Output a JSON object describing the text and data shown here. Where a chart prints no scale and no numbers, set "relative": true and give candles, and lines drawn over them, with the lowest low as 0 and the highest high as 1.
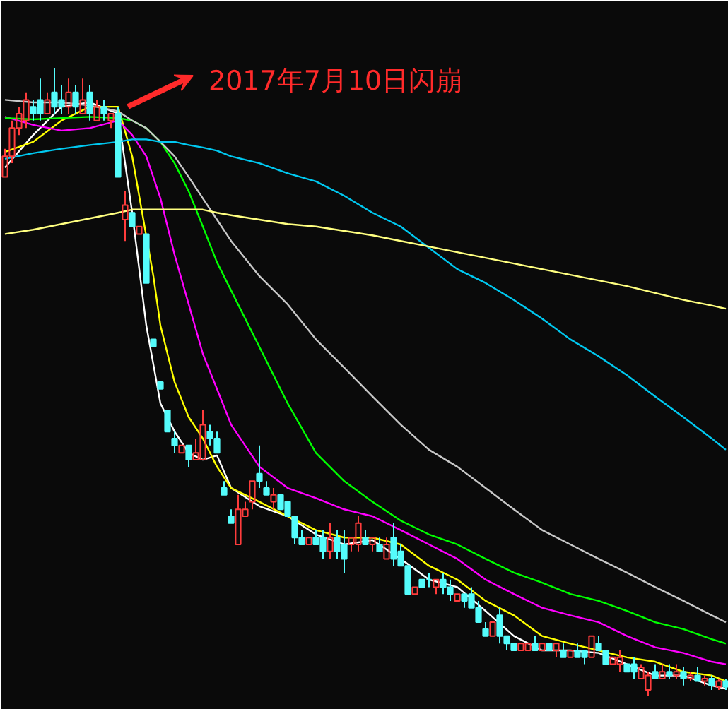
{
  "chart_data": {
    "type": "candlestick",
    "relative": true,
    "annotations": [
      "2017年7月10日闪崩"
    ],
    "categories": [
      null,
      null,
      null,
      null,
      null,
      null,
      null,
      null,
      null,
      null,
      null,
      null,
      null,
      null,
      null,
      null,
      null,
      null,
      null,
      null,
      null,
      null,
      null,
      null,
      null,
      null,
      null,
      null,
      null,
      null,
      null,
      null,
      null,
      null,
      null,
      null,
      null,
      null,
      null,
      null,
      null,
      null,
      null,
      null,
      null,
      null,
      null,
      null,
      null,
      null,
      null,
      null,
      null,
      null,
      null,
      null,
      null,
      null,
      null,
      null,
      null,
      null,
      null,
      null,
      null,
      null,
      null,
      null,
      null,
      null,
      null,
      null,
      null,
      null,
      null,
      null,
      null,
      null,
      null,
      null,
      null,
      null,
      null,
      null,
      null,
      null,
      null,
      null,
      null,
      null,
      null,
      null,
      null,
      null,
      null,
      null,
      null,
      null,
      null,
      null,
      null,
      null,
      null
    ],
    "ohlc": [
      [
        0.827,
        0.872,
        0.827,
        0.86
      ],
      [
        0.86,
        0.917,
        0.849,
        0.905
      ],
      [
        0.905,
        0.939,
        0.894,
        0.928
      ],
      [
        0.917,
        0.962,
        0.905,
        0.95
      ],
      [
        0.939,
        0.95,
        0.917,
        0.928
      ],
      [
        0.95,
        0.984,
        0.917,
        0.928
      ],
      [
        0.928,
        0.962,
        0.928,
        0.95
      ],
      [
        0.962,
        1.0,
        0.928,
        0.939
      ],
      [
        0.95,
        0.973,
        0.928,
        0.939
      ],
      [
        0.939,
        0.984,
        0.928,
        0.962
      ],
      [
        0.962,
        0.973,
        0.928,
        0.939
      ],
      [
        0.928,
        0.984,
        0.928,
        0.95
      ],
      [
        0.962,
        0.973,
        0.917,
        0.928
      ],
      [
        0.917,
        0.95,
        0.917,
        0.939
      ],
      [
        0.939,
        0.95,
        0.917,
        0.928
      ],
      [
        0.917,
        0.928,
        0.905,
        0.928
      ],
      [
        0.928,
        0.939,
        0.827,
        0.827
      ],
      [
        0.759,
        0.804,
        0.725,
        0.782
      ],
      [
        0.77,
        0.77,
        0.748,
        0.748
      ],
      [
        0.736,
        0.748,
        0.736,
        0.748
      ],
      [
        0.736,
        0.736,
        0.658,
        0.658
      ],
      [
        0.568,
        0.568,
        0.557,
        0.557
      ],
      [
        0.5,
        0.5,
        0.489,
        0.489
      ],
      [
        0.455,
        0.455,
        0.421,
        0.421
      ],
      [
        0.41,
        0.421,
        0.387,
        0.399
      ],
      [
        0.387,
        0.399,
        0.387,
        0.399
      ],
      [
        0.399,
        0.399,
        0.365,
        0.376
      ],
      [
        0.376,
        0.41,
        0.376,
        0.387
      ],
      [
        0.376,
        0.455,
        0.376,
        0.432
      ],
      [
        0.421,
        0.432,
        0.399,
        0.41
      ],
      [
        0.41,
        0.421,
        0.387,
        0.387
      ],
      [
        0.331,
        0.342,
        0.32,
        0.32
      ],
      [
        0.286,
        0.297,
        0.275,
        0.275
      ],
      [
        0.241,
        0.32,
        0.241,
        0.297
      ],
      [
        0.286,
        0.309,
        0.286,
        0.297
      ],
      [
        0.309,
        0.342,
        0.297,
        0.342
      ],
      [
        0.354,
        0.399,
        0.331,
        0.342
      ],
      [
        0.331,
        0.342,
        0.32,
        0.32
      ],
      [
        0.309,
        0.331,
        0.297,
        0.32
      ],
      [
        0.32,
        0.32,
        0.297,
        0.297
      ],
      [
        0.309,
        0.309,
        0.286,
        0.286
      ],
      [
        0.286,
        0.286,
        0.241,
        0.252
      ],
      [
        0.252,
        0.264,
        0.241,
        0.241
      ],
      [
        0.241,
        0.252,
        0.241,
        0.252
      ],
      [
        0.252,
        0.264,
        0.241,
        0.241
      ],
      [
        0.252,
        0.264,
        0.218,
        0.23
      ],
      [
        0.23,
        0.275,
        0.218,
        0.252
      ],
      [
        0.252,
        0.264,
        0.218,
        0.23
      ],
      [
        0.241,
        0.264,
        0.196,
        0.218
      ],
      [
        0.241,
        0.252,
        0.23,
        0.252
      ],
      [
        0.241,
        0.286,
        0.23,
        0.275
      ],
      [
        0.252,
        0.264,
        0.241,
        0.241
      ],
      [
        0.241,
        0.252,
        0.23,
        0.252
      ],
      [
        0.241,
        0.252,
        0.23,
        0.23
      ],
      [
        0.218,
        0.252,
        0.218,
        0.241
      ],
      [
        0.252,
        0.275,
        0.207,
        0.218
      ],
      [
        0.23,
        0.241,
        0.207,
        0.207
      ],
      [
        0.207,
        0.207,
        0.162,
        0.162
      ],
      [
        0.162,
        0.173,
        0.162,
        0.173
      ],
      [
        0.185,
        0.185,
        0.173,
        0.173
      ],
      [
        0.185,
        0.196,
        0.173,
        0.185
      ],
      [
        0.173,
        0.185,
        0.162,
        0.185
      ],
      [
        0.185,
        0.196,
        0.162,
        0.173
      ],
      [
        0.173,
        0.185,
        0.151,
        0.162
      ],
      [
        0.151,
        0.162,
        0.151,
        0.162
      ],
      [
        0.162,
        0.162,
        0.14,
        0.151
      ],
      [
        0.162,
        0.173,
        0.14,
        0.14
      ],
      [
        0.14,
        0.151,
        0.117,
        0.117
      ],
      [
        0.106,
        0.117,
        0.095,
        0.095
      ],
      [
        0.095,
        0.117,
        0.095,
        0.117
      ],
      [
        0.128,
        0.14,
        0.083,
        0.095
      ],
      [
        0.095,
        0.095,
        0.072,
        0.083
      ],
      [
        0.083,
        0.083,
        0.072,
        0.072
      ],
      [
        0.072,
        0.083,
        0.072,
        0.083
      ],
      [
        0.072,
        0.083,
        0.072,
        0.083
      ],
      [
        0.083,
        0.095,
        0.072,
        0.072
      ],
      [
        0.072,
        0.083,
        0.072,
        0.083
      ],
      [
        0.083,
        0.083,
        0.072,
        0.072
      ],
      [
        0.072,
        0.083,
        0.061,
        0.083
      ],
      [
        0.072,
        0.083,
        0.061,
        0.061
      ],
      [
        0.061,
        0.072,
        0.061,
        0.072
      ],
      [
        0.072,
        0.083,
        0.061,
        0.061
      ],
      [
        0.072,
        0.072,
        0.05,
        0.061
      ],
      [
        0.061,
        0.095,
        0.061,
        0.095
      ],
      [
        0.083,
        0.095,
        0.072,
        0.072
      ],
      [
        0.072,
        0.072,
        0.05,
        0.05
      ],
      [
        0.05,
        0.061,
        0.05,
        0.061
      ],
      [
        0.05,
        0.072,
        0.038,
        0.061
      ],
      [
        0.05,
        0.05,
        0.038,
        0.038
      ],
      [
        0.05,
        0.061,
        0.027,
        0.038
      ],
      [
        0.027,
        0.05,
        0.027,
        0.045
      ],
      [
        0.009,
        0.038,
        0.0,
        0.032
      ],
      [
        0.038,
        0.05,
        0.027,
        0.027
      ],
      [
        0.027,
        0.05,
        0.027,
        0.038
      ],
      [
        0.038,
        0.05,
        0.027,
        0.032
      ],
      [
        0.032,
        0.05,
        0.027,
        0.038
      ],
      [
        0.038,
        0.045,
        0.016,
        0.027
      ],
      [
        0.027,
        0.038,
        0.023,
        0.032
      ],
      [
        0.032,
        0.045,
        0.023,
        0.023
      ],
      [
        0.023,
        0.032,
        0.016,
        0.027
      ],
      [
        0.027,
        0.032,
        0.009,
        0.016
      ],
      [
        0.014,
        0.027,
        0.009,
        0.023
      ],
      [
        0.023,
        0.027,
        0.009,
        0.014
      ]
    ],
    "colors": [
      "#ff3c3c",
      "#ff3c3c",
      "#ff3c3c",
      "#ff3c3c",
      "#54fcfc",
      "#54fcfc",
      "#ff3c3c",
      "#54fcfc",
      "#54fcfc",
      "#ff3c3c",
      "#54fcfc",
      "#ff3c3c",
      "#54fcfc",
      "#ff3c3c",
      "#54fcfc",
      "#ff3c3c",
      "#54fcfc",
      "#ff3c3c",
      "#54fcfc",
      "#ff3c3c",
      "#54fcfc",
      "#54fcfc",
      "#54fcfc",
      "#54fcfc",
      "#54fcfc",
      "#ff3c3c",
      "#54fcfc",
      "#ff3c3c",
      "#ff3c3c",
      "#54fcfc",
      "#54fcfc",
      "#54fcfc",
      "#54fcfc",
      "#ff3c3c",
      "#ff3c3c",
      "#ff3c3c",
      "#54fcfc",
      "#54fcfc",
      "#ff3c3c",
      "#54fcfc",
      "#54fcfc",
      "#54fcfc",
      "#54fcfc",
      "#ff3c3c",
      "#54fcfc",
      "#54fcfc",
      "#ff3c3c",
      "#54fcfc",
      "#54fcfc",
      "#ff3c3c",
      "#ff3c3c",
      "#54fcfc",
      "#ff3c3c",
      "#54fcfc",
      "#ff3c3c",
      "#54fcfc",
      "#54fcfc",
      "#54fcfc",
      "#ff3c3c",
      "#54fcfc",
      "#54fcfc",
      "#ff3c3c",
      "#54fcfc",
      "#54fcfc",
      "#ff3c3c",
      "#54fcfc",
      "#54fcfc",
      "#54fcfc",
      "#54fcfc",
      "#ff3c3c",
      "#54fcfc",
      "#54fcfc",
      "#54fcfc",
      "#ff3c3c",
      "#ff3c3c",
      "#54fcfc",
      "#ff3c3c",
      "#54fcfc",
      "#ff3c3c",
      "#54fcfc",
      "#ff3c3c",
      "#54fcfc",
      "#54fcfc",
      "#ff3c3c",
      "#54fcfc",
      "#54fcfc",
      "#ff3c3c",
      "#ff3c3c",
      "#54fcfc",
      "#54fcfc",
      "#ff3c3c",
      "#ff3c3c",
      "#54fcfc",
      "#ff3c3c",
      "#54fcfc",
      "#ff3c3c",
      "#54fcfc",
      "#ff3c3c",
      "#54fcfc",
      "#ff3c3c",
      "#54fcfc",
      "#ff3c3c",
      "#54fcfc"
    ],
    "series": [
      {
        "type": "line",
        "color": "#ffffff",
        "values": [
          0.842,
          null,
          null,
          null,
          0.894,
          null,
          null,
          null,
          0.939,
          null,
          null,
          null,
          0.946,
          null,
          null,
          null,
          0.928,
          null,
          0.77,
          null,
          0.59,
          null,
          0.466,
          null,
          0.421,
          null,
          0.387,
          null,
          0.376,
          null,
          0.383,
          null,
          0.331,
          null,
          null,
          null,
          0.302,
          null,
          null,
          null,
          0.286,
          null,
          null,
          null,
          0.257,
          null,
          null,
          null,
          0.241,
          null,
          null,
          null,
          0.248,
          null,
          null,
          null,
          0.218,
          null,
          null,
          null,
          0.185,
          null,
          null,
          null,
          0.173,
          null,
          null,
          null,
          0.135,
          null,
          null,
          null,
          0.095,
          null,
          null,
          null,
          0.072,
          null,
          null,
          null,
          0.072,
          null,
          null,
          null,
          0.068,
          null,
          null,
          null,
          0.05,
          null,
          null,
          null,
          0.032,
          null,
          null,
          null,
          0.032,
          null,
          null,
          null,
          0.016,
          null,
          0.011
        ]
      },
      {
        "type": "line",
        "color": "#ffff00",
        "values": [
          0.867,
          null,
          null,
          null,
          0.883,
          null,
          null,
          null,
          0.917,
          null,
          null,
          null,
          0.939,
          null,
          null,
          null,
          0.939,
          null,
          0.86,
          null,
          null,
          0.669,
          0.59,
          null,
          0.5,
          null,
          0.444,
          null,
          0.41,
          null,
          0.365,
          null,
          0.331,
          null,
          null,
          null,
          0.309,
          null,
          null,
          null,
          0.286,
          null,
          null,
          null,
          0.264,
          null,
          null,
          null,
          0.252,
          null,
          null,
          null,
          0.252,
          null,
          null,
          null,
          0.241,
          null,
          null,
          null,
          0.207,
          null,
          null,
          null,
          0.185,
          null,
          null,
          null,
          0.151,
          null,
          null,
          null,
          0.128,
          null,
          null,
          null,
          0.095,
          null,
          null,
          null,
          0.083,
          null,
          null,
          null,
          0.072,
          null,
          null,
          null,
          0.061,
          null,
          null,
          null,
          0.054,
          null,
          null,
          null,
          0.038,
          null,
          null,
          null,
          0.032,
          null,
          0.023
        ]
      },
      {
        "type": "line",
        "color": "#ff00ff",
        "values": [
          0.923,
          null,
          null,
          null,
          0.91,
          null,
          null,
          null,
          0.901,
          null,
          null,
          null,
          0.905,
          null,
          null,
          null,
          0.917,
          null,
          0.894,
          null,
          0.86,
          null,
          0.793,
          null,
          0.703,
          null,
          0.624,
          null,
          0.545,
          null,
          0.489,
          null,
          0.432,
          null,
          null,
          null,
          0.365,
          null,
          null,
          null,
          0.331,
          null,
          null,
          null,
          0.315,
          null,
          null,
          null,
          0.297,
          null,
          null,
          null,
          0.286,
          null,
          null,
          null,
          0.264,
          null,
          null,
          null,
          0.241,
          null,
          null,
          null,
          0.218,
          null,
          null,
          null,
          0.185,
          null,
          null,
          null,
          0.162,
          null,
          null,
          null,
          0.14,
          null,
          null,
          null,
          0.128,
          null,
          null,
          null,
          0.117,
          null,
          null,
          null,
          0.095,
          null,
          null,
          null,
          0.077,
          null,
          null,
          null,
          0.068,
          null,
          null,
          null,
          0.054,
          null,
          0.05
        ]
      },
      {
        "type": "line",
        "color": "#00ff00",
        "values": [
          0.921,
          null,
          null,
          null,
          0.919,
          null,
          null,
          null,
          0.921,
          null,
          null,
          null,
          0.923,
          null,
          null,
          null,
          0.921,
          null,
          0.917,
          null,
          0.905,
          null,
          0.883,
          null,
          0.849,
          null,
          0.804,
          null,
          0.748,
          null,
          0.691,
          null,
          0.646,
          null,
          null,
          null,
          0.556,
          null,
          null,
          null,
          0.466,
          null,
          null,
          null,
          0.387,
          null,
          null,
          null,
          0.342,
          null,
          null,
          null,
          0.309,
          null,
          null,
          null,
          0.279,
          null,
          null,
          null,
          0.257,
          null,
          null,
          null,
          0.241,
          null,
          null,
          null,
          0.218,
          null,
          null,
          null,
          0.196,
          null,
          null,
          null,
          0.18,
          null,
          null,
          null,
          0.162,
          null,
          null,
          null,
          0.151,
          null,
          null,
          null,
          0.135,
          null,
          null,
          null,
          0.117,
          null,
          null,
          null,
          0.106,
          null,
          null,
          null,
          0.09,
          null,
          0.083
        ]
      },
      {
        "type": "line",
        "color": "#c8c8c8",
        "values": [
          0.95,
          null,
          null,
          null,
          0.946,
          null,
          null,
          null,
          0.946,
          null,
          null,
          null,
          0.941,
          null,
          null,
          null,
          0.932,
          null,
          0.917,
          null,
          0.905,
          null,
          0.883,
          null,
          0.86,
          null,
          0.827,
          null,
          0.793,
          null,
          0.759,
          null,
          0.725,
          null,
          null,
          null,
          0.669,
          null,
          null,
          null,
          0.624,
          null,
          null,
          null,
          0.568,
          null,
          null,
          null,
          0.523,
          null,
          null,
          null,
          0.477,
          null,
          null,
          null,
          0.432,
          null,
          null,
          null,
          0.392,
          null,
          null,
          null,
          0.365,
          null,
          null,
          null,
          0.331,
          null,
          null,
          null,
          0.297,
          null,
          null,
          null,
          0.264,
          null,
          null,
          null,
          0.241,
          null,
          null,
          null,
          0.218,
          null,
          null,
          null,
          0.196,
          null,
          null,
          null,
          0.173,
          null,
          null,
          null,
          0.151,
          null,
          null,
          null,
          0.128,
          null,
          0.117
        ]
      },
      {
        "type": "line",
        "color": "#00c8f0",
        "values": [
          0.856,
          null,
          null,
          null,
          0.865,
          null,
          null,
          null,
          0.872,
          null,
          null,
          null,
          0.878,
          null,
          null,
          null,
          0.883,
          null,
          0.887,
          null,
          0.887,
          null,
          0.883,
          null,
          0.883,
          null,
          0.878,
          null,
          0.874,
          null,
          0.869,
          null,
          0.86,
          null,
          null,
          null,
          0.849,
          null,
          null,
          null,
          0.833,
          null,
          null,
          null,
          0.82,
          null,
          null,
          null,
          0.797,
          null,
          null,
          null,
          0.77,
          null,
          null,
          null,
          0.748,
          null,
          null,
          null,
          0.714,
          null,
          null,
          null,
          0.68,
          null,
          null,
          null,
          0.658,
          null,
          null,
          null,
          0.631,
          null,
          null,
          null,
          0.601,
          null,
          null,
          null,
          0.568,
          null,
          null,
          null,
          0.541,
          null,
          null,
          null,
          0.511,
          null,
          null,
          null,
          0.477,
          null,
          null,
          null,
          0.444,
          null,
          null,
          null,
          0.41,
          null,
          0.392
        ]
      },
      {
        "type": "line",
        "color": "#ffff80",
        "values": [
          0.736,
          null,
          null,
          null,
          0.743,
          null,
          null,
          null,
          0.752,
          null,
          null,
          null,
          0.761,
          null,
          null,
          null,
          0.77,
          null,
          0.775,
          null,
          0.775,
          null,
          0.775,
          null,
          0.775,
          null,
          0.775,
          null,
          0.775,
          null,
          0.77,
          null,
          0.766,
          null,
          null,
          null,
          0.759,
          null,
          null,
          null,
          0.752,
          null,
          null,
          null,
          0.748,
          null,
          null,
          null,
          0.741,
          null,
          null,
          null,
          0.734,
          null,
          null,
          null,
          0.725,
          null,
          null,
          null,
          0.716,
          null,
          null,
          null,
          0.707,
          null,
          null,
          null,
          0.698,
          null,
          null,
          null,
          0.689,
          null,
          null,
          null,
          0.68,
          null,
          null,
          null,
          0.671,
          null,
          null,
          null,
          0.662,
          null,
          null,
          null,
          0.653,
          null,
          null,
          null,
          0.642,
          null,
          null,
          null,
          0.631,
          null,
          null,
          null,
          0.622,
          null,
          0.617
        ]
      }
    ]
  }
}
